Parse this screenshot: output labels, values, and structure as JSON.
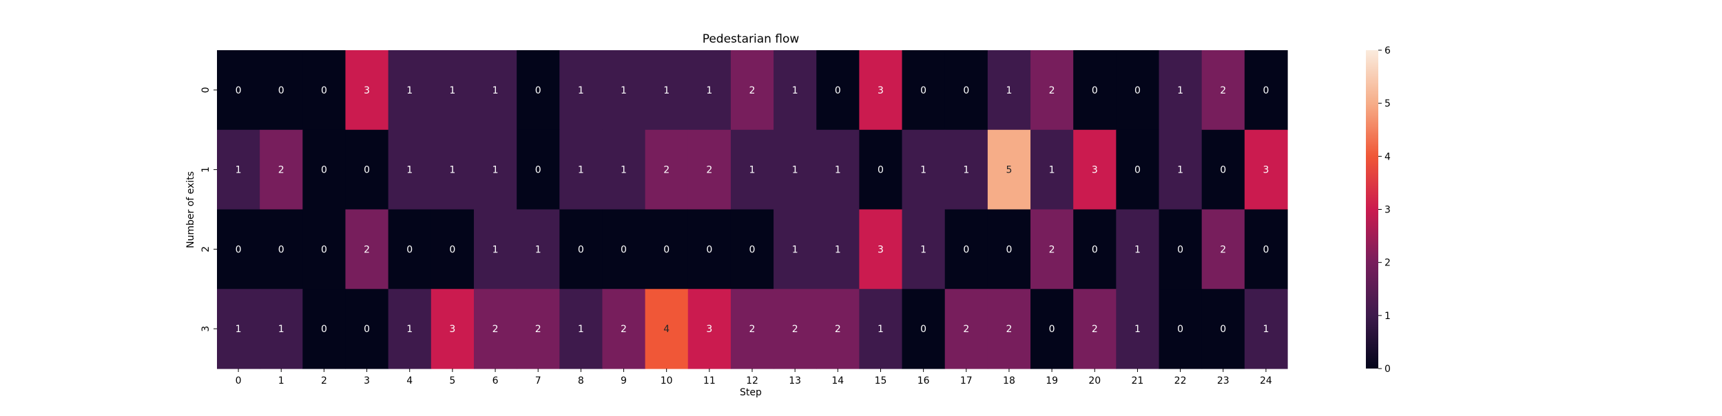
{
  "chart_data": {
    "type": "heatmap",
    "title": "Pedestarian flow",
    "xlabel": "Step",
    "ylabel": "Number of exits",
    "x_categories": [
      "0",
      "1",
      "2",
      "3",
      "4",
      "5",
      "6",
      "7",
      "8",
      "9",
      "10",
      "11",
      "12",
      "13",
      "14",
      "15",
      "16",
      "17",
      "18",
      "19",
      "20",
      "21",
      "22",
      "23",
      "24"
    ],
    "y_categories": [
      "0",
      "1",
      "2",
      "3"
    ],
    "values": [
      [
        0,
        0,
        0,
        3,
        1,
        1,
        1,
        0,
        1,
        1,
        1,
        1,
        2,
        1,
        0,
        3,
        0,
        0,
        1,
        2,
        0,
        0,
        1,
        2,
        0
      ],
      [
        1,
        2,
        0,
        0,
        1,
        1,
        1,
        0,
        1,
        1,
        2,
        2,
        1,
        1,
        1,
        0,
        1,
        1,
        5,
        1,
        3,
        0,
        1,
        0,
        3
      ],
      [
        0,
        0,
        0,
        2,
        0,
        0,
        1,
        1,
        0,
        0,
        0,
        0,
        0,
        1,
        1,
        3,
        1,
        0,
        0,
        2,
        0,
        1,
        0,
        2,
        0
      ],
      [
        1,
        1,
        0,
        0,
        1,
        3,
        2,
        2,
        1,
        2,
        4,
        3,
        2,
        2,
        2,
        1,
        0,
        2,
        2,
        0,
        2,
        1,
        0,
        0,
        1
      ]
    ],
    "colorbar": {
      "range": [
        0,
        6
      ],
      "ticks": [
        "0",
        "1",
        "2",
        "3",
        "4",
        "5",
        "6"
      ],
      "colormap": "rocket"
    },
    "annotations": true,
    "grid": false
  }
}
